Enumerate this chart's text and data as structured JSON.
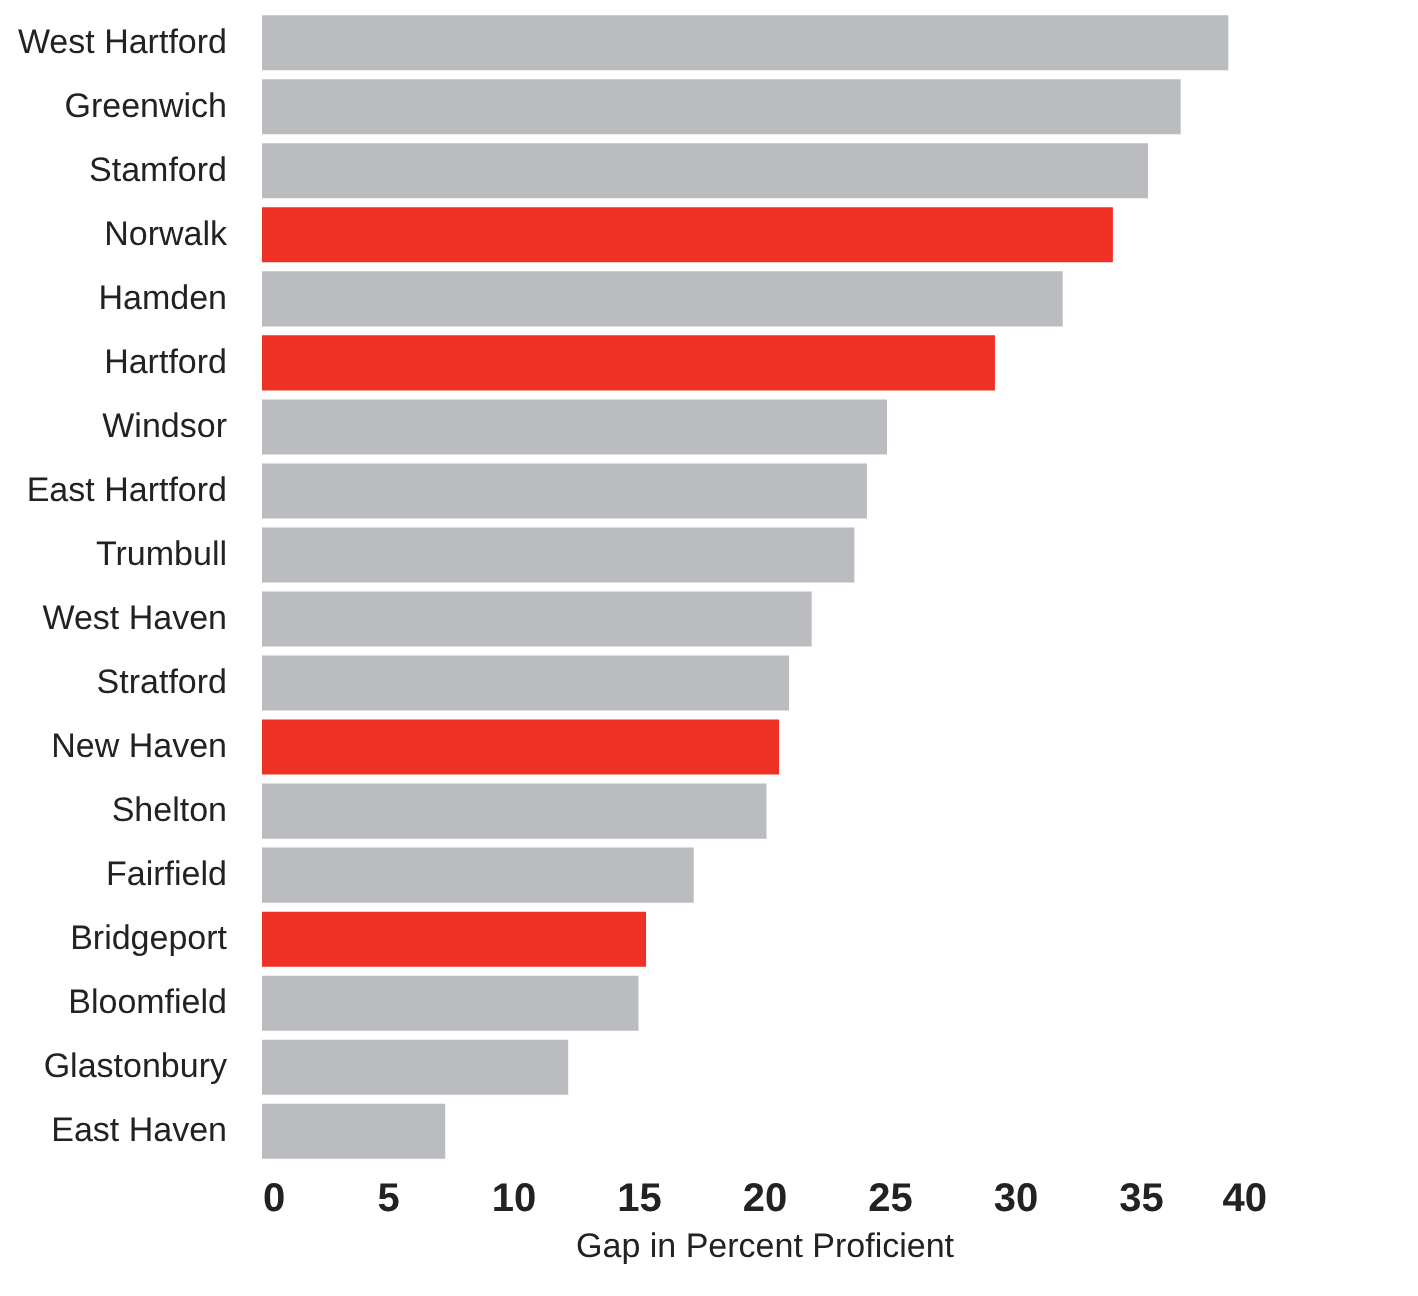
{
  "chart_data": {
    "type": "bar",
    "orientation": "horizontal",
    "xlabel": "Gap in Percent Proficient",
    "categories": [
      "West Hartford",
      "Greenwich",
      "Stamford",
      "Norwalk",
      "Hamden",
      "Hartford",
      "Windsor",
      "East Hartford",
      "Trumbull",
      "West Haven",
      "Stratford",
      "New Haven",
      "Shelton",
      "Fairfield",
      "Bridgeport",
      "Bloomfield",
      "Glastonbury",
      "East Haven"
    ],
    "values": [
      38.5,
      36.6,
      35.3,
      33.9,
      31.9,
      29.2,
      24.9,
      24.1,
      23.6,
      21.9,
      21.0,
      20.6,
      20.1,
      17.2,
      15.3,
      15.0,
      12.2,
      7.3
    ],
    "colors": [
      "#bbbcc0",
      "#bbbcc0",
      "#bbbcc0",
      "#ee3124",
      "#bbbcc0",
      "#ee3124",
      "#bbbcc0",
      "#bbbcc0",
      "#bbbcc0",
      "#bbbcc0",
      "#bbbcc0",
      "#ee3124",
      "#bbbcc0",
      "#bbbcc0",
      "#ee3124",
      "#bbbcc0",
      "#bbbcc0",
      "#bbbcc0"
    ],
    "xlim": [
      0,
      40
    ],
    "xticks": [
      0,
      5,
      10,
      15,
      20,
      25,
      30,
      35,
      40
    ],
    "grid": false
  }
}
